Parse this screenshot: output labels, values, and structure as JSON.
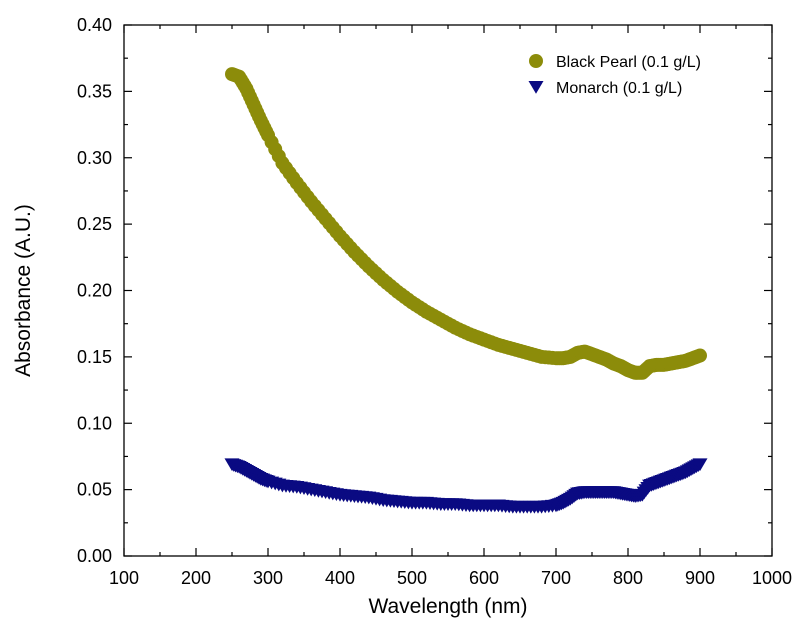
{
  "chart_data": {
    "type": "scatter",
    "title": "",
    "xlabel": "Wavelength (nm)",
    "ylabel": "Absorbance (A.U.)",
    "xlim": [
      100,
      1000
    ],
    "ylim": [
      0.0,
      0.4
    ],
    "x_ticks": [
      "100",
      "200",
      "300",
      "400",
      "500",
      "600",
      "700",
      "800",
      "900",
      "1000"
    ],
    "y_ticks": [
      "0.00",
      "0.05",
      "0.10",
      "0.15",
      "0.20",
      "0.25",
      "0.30",
      "0.35",
      "0.40"
    ],
    "grid": false,
    "legend_position": "top-right",
    "series": [
      {
        "name": "Black Pearl (0.1 g/L)",
        "marker": "circle",
        "color": "#8c8c0a",
        "x": [
          250,
          260,
          270,
          280,
          290,
          300,
          320,
          340,
          360,
          380,
          400,
          420,
          440,
          460,
          480,
          500,
          520,
          540,
          560,
          580,
          600,
          620,
          640,
          660,
          680,
          700,
          710,
          720,
          730,
          740,
          750,
          760,
          770,
          780,
          790,
          800,
          810,
          820,
          830,
          840,
          850,
          860,
          870,
          880,
          890,
          900
        ],
        "y": [
          0.363,
          0.361,
          0.352,
          0.34,
          0.328,
          0.317,
          0.296,
          0.281,
          0.267,
          0.254,
          0.241,
          0.229,
          0.218,
          0.208,
          0.199,
          0.191,
          0.184,
          0.178,
          0.172,
          0.167,
          0.163,
          0.159,
          0.156,
          0.153,
          0.15,
          0.149,
          0.149,
          0.15,
          0.153,
          0.154,
          0.152,
          0.15,
          0.148,
          0.145,
          0.143,
          0.14,
          0.138,
          0.138,
          0.143,
          0.144,
          0.144,
          0.145,
          0.146,
          0.147,
          0.149,
          0.151
        ]
      },
      {
        "name": "Monarch (0.1 g/L)",
        "marker": "triangle-down",
        "color": "#0a0a82",
        "x": [
          250,
          260,
          270,
          280,
          290,
          300,
          320,
          340,
          360,
          380,
          400,
          420,
          440,
          460,
          480,
          500,
          520,
          540,
          560,
          580,
          600,
          620,
          640,
          660,
          680,
          700,
          710,
          720,
          730,
          740,
          750,
          760,
          770,
          780,
          790,
          800,
          810,
          820,
          830,
          840,
          850,
          860,
          870,
          880,
          890,
          900
        ],
        "y": [
          0.069,
          0.067,
          0.064,
          0.061,
          0.058,
          0.056,
          0.053,
          0.052,
          0.05,
          0.048,
          0.046,
          0.045,
          0.044,
          0.042,
          0.041,
          0.04,
          0.04,
          0.039,
          0.039,
          0.038,
          0.038,
          0.038,
          0.037,
          0.037,
          0.037,
          0.038,
          0.04,
          0.043,
          0.047,
          0.048,
          0.048,
          0.048,
          0.048,
          0.048,
          0.047,
          0.046,
          0.045,
          0.046,
          0.053,
          0.055,
          0.057,
          0.059,
          0.061,
          0.063,
          0.066,
          0.069
        ]
      }
    ]
  }
}
